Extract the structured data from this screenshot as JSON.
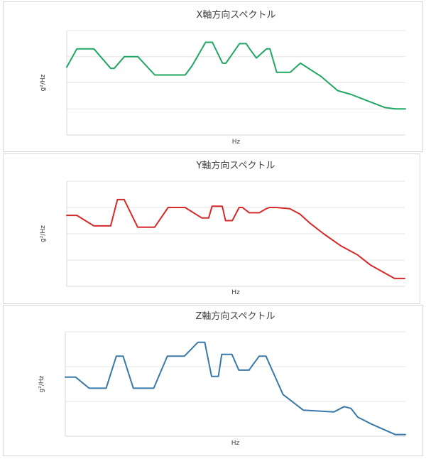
{
  "chart_data": [
    {
      "type": "line",
      "title": "X軸方向スペクトル",
      "xlabel": "Hz",
      "ylabel": "g²/Hz",
      "color": "#21A663",
      "ylim": [
        0,
        4
      ],
      "grid": true,
      "x": [
        0,
        3,
        4,
        8,
        13,
        14,
        17,
        21,
        26,
        29,
        35,
        37,
        41,
        42,
        43,
        46,
        47,
        51,
        53,
        54,
        56,
        59,
        60,
        62,
        66,
        69,
        75,
        80,
        84,
        88,
        94,
        97,
        100
      ],
      "series": [
        {
          "values": [
            2.6,
            3.3,
            3.3,
            3.3,
            2.55,
            2.55,
            3.0,
            3.0,
            2.3,
            2.3,
            2.3,
            2.65,
            3.55,
            3.55,
            3.55,
            2.75,
            2.75,
            3.5,
            3.5,
            3.3,
            2.95,
            3.3,
            3.3,
            2.4,
            2.4,
            2.75,
            2.25,
            1.7,
            1.55,
            1.35,
            1.05,
            1.0,
            1.0
          ]
        }
      ]
    },
    {
      "type": "line",
      "title": "Y軸方向スペクトル",
      "xlabel": "Hz",
      "ylabel": "g²/Hz",
      "color": "#D42A2A",
      "ylim": [
        0,
        4
      ],
      "grid": true,
      "x": [
        0,
        3,
        8,
        13,
        15,
        17,
        21,
        26,
        30,
        35,
        40,
        42,
        43,
        46,
        47,
        48,
        49,
        51,
        52,
        54,
        57,
        59,
        60,
        62,
        66,
        69,
        72,
        76,
        81,
        86,
        90,
        97,
        100
      ],
      "series": [
        {
          "values": [
            2.7,
            2.7,
            2.3,
            2.3,
            3.3,
            3.3,
            2.25,
            2.25,
            3.0,
            3.0,
            2.6,
            2.6,
            3.05,
            3.05,
            2.5,
            2.5,
            2.5,
            3.0,
            3.0,
            2.8,
            2.8,
            2.95,
            3.0,
            3.0,
            2.95,
            2.75,
            2.4,
            2.0,
            1.55,
            1.2,
            0.8,
            0.3,
            0.3
          ]
        }
      ]
    },
    {
      "type": "line",
      "title": "Z軸方向スペクトル",
      "xlabel": "Hz",
      "ylabel": "g²/Hz",
      "color": "#3A78A8",
      "ylim": [
        0,
        3
      ],
      "grid": true,
      "x": [
        0,
        3,
        7,
        12,
        15,
        17,
        20,
        26,
        30,
        35,
        39,
        41,
        43,
        44,
        45,
        46,
        47,
        49,
        51,
        54,
        57,
        59,
        64,
        70,
        79,
        82,
        84,
        86,
        90,
        97,
        100
      ],
      "series": [
        {
          "values": [
            1.7,
            1.7,
            1.38,
            1.38,
            2.3,
            2.3,
            1.38,
            1.38,
            2.3,
            2.3,
            2.7,
            2.7,
            1.72,
            1.72,
            1.72,
            2.35,
            2.35,
            2.35,
            1.9,
            1.9,
            2.3,
            2.3,
            1.2,
            0.75,
            0.7,
            0.85,
            0.8,
            0.55,
            0.35,
            0.05,
            0.05
          ]
        }
      ]
    }
  ]
}
